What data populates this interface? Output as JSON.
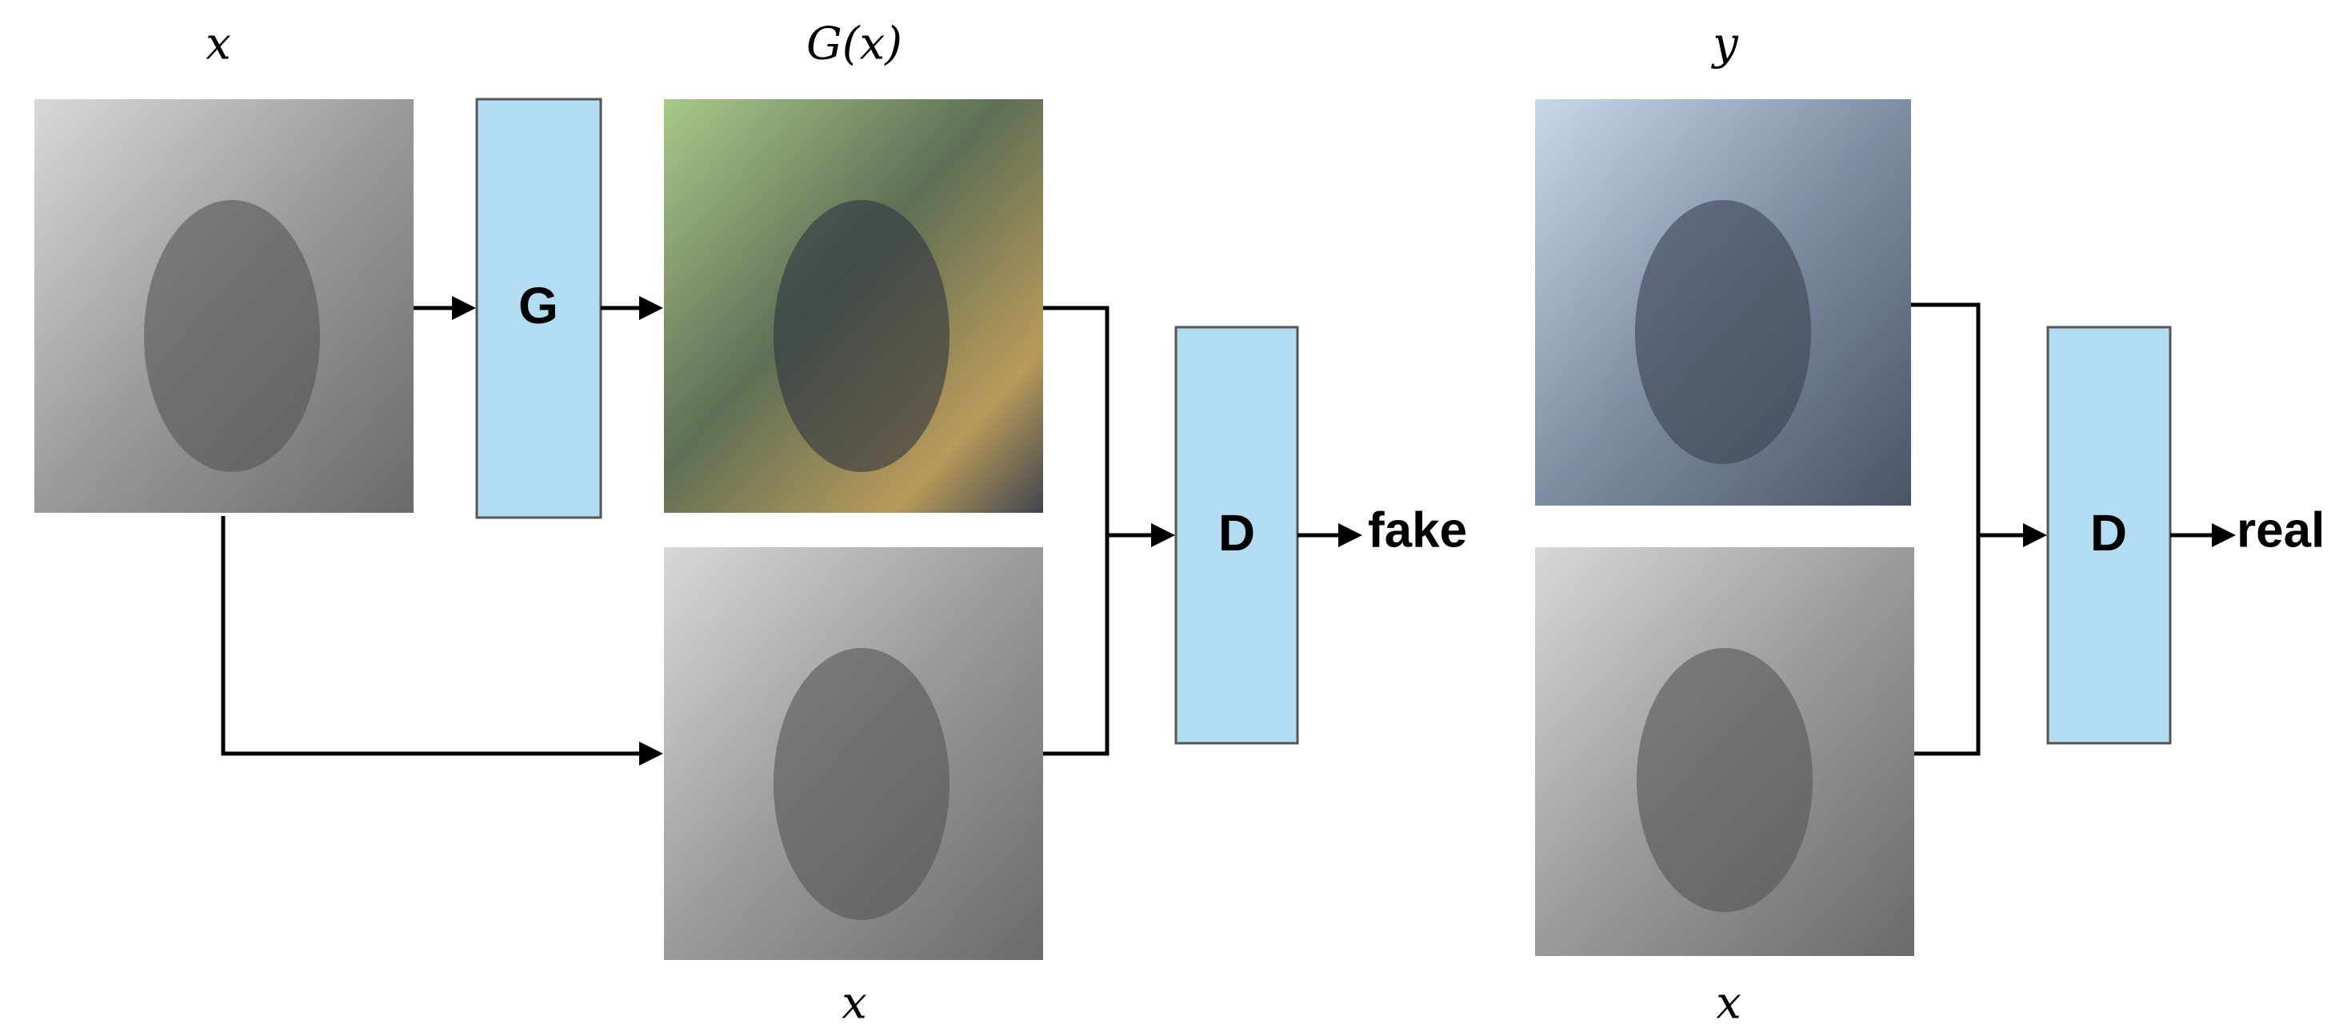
{
  "labels": {
    "input_x": "x",
    "generated": "G(x)",
    "target_y": "y",
    "condition_x_fake": "x",
    "condition_x_real": "x"
  },
  "blocks": {
    "generator": "G",
    "discriminator_fake": "D",
    "discriminator_real": "D"
  },
  "outputs": {
    "fake": "fake",
    "real": "real"
  }
}
